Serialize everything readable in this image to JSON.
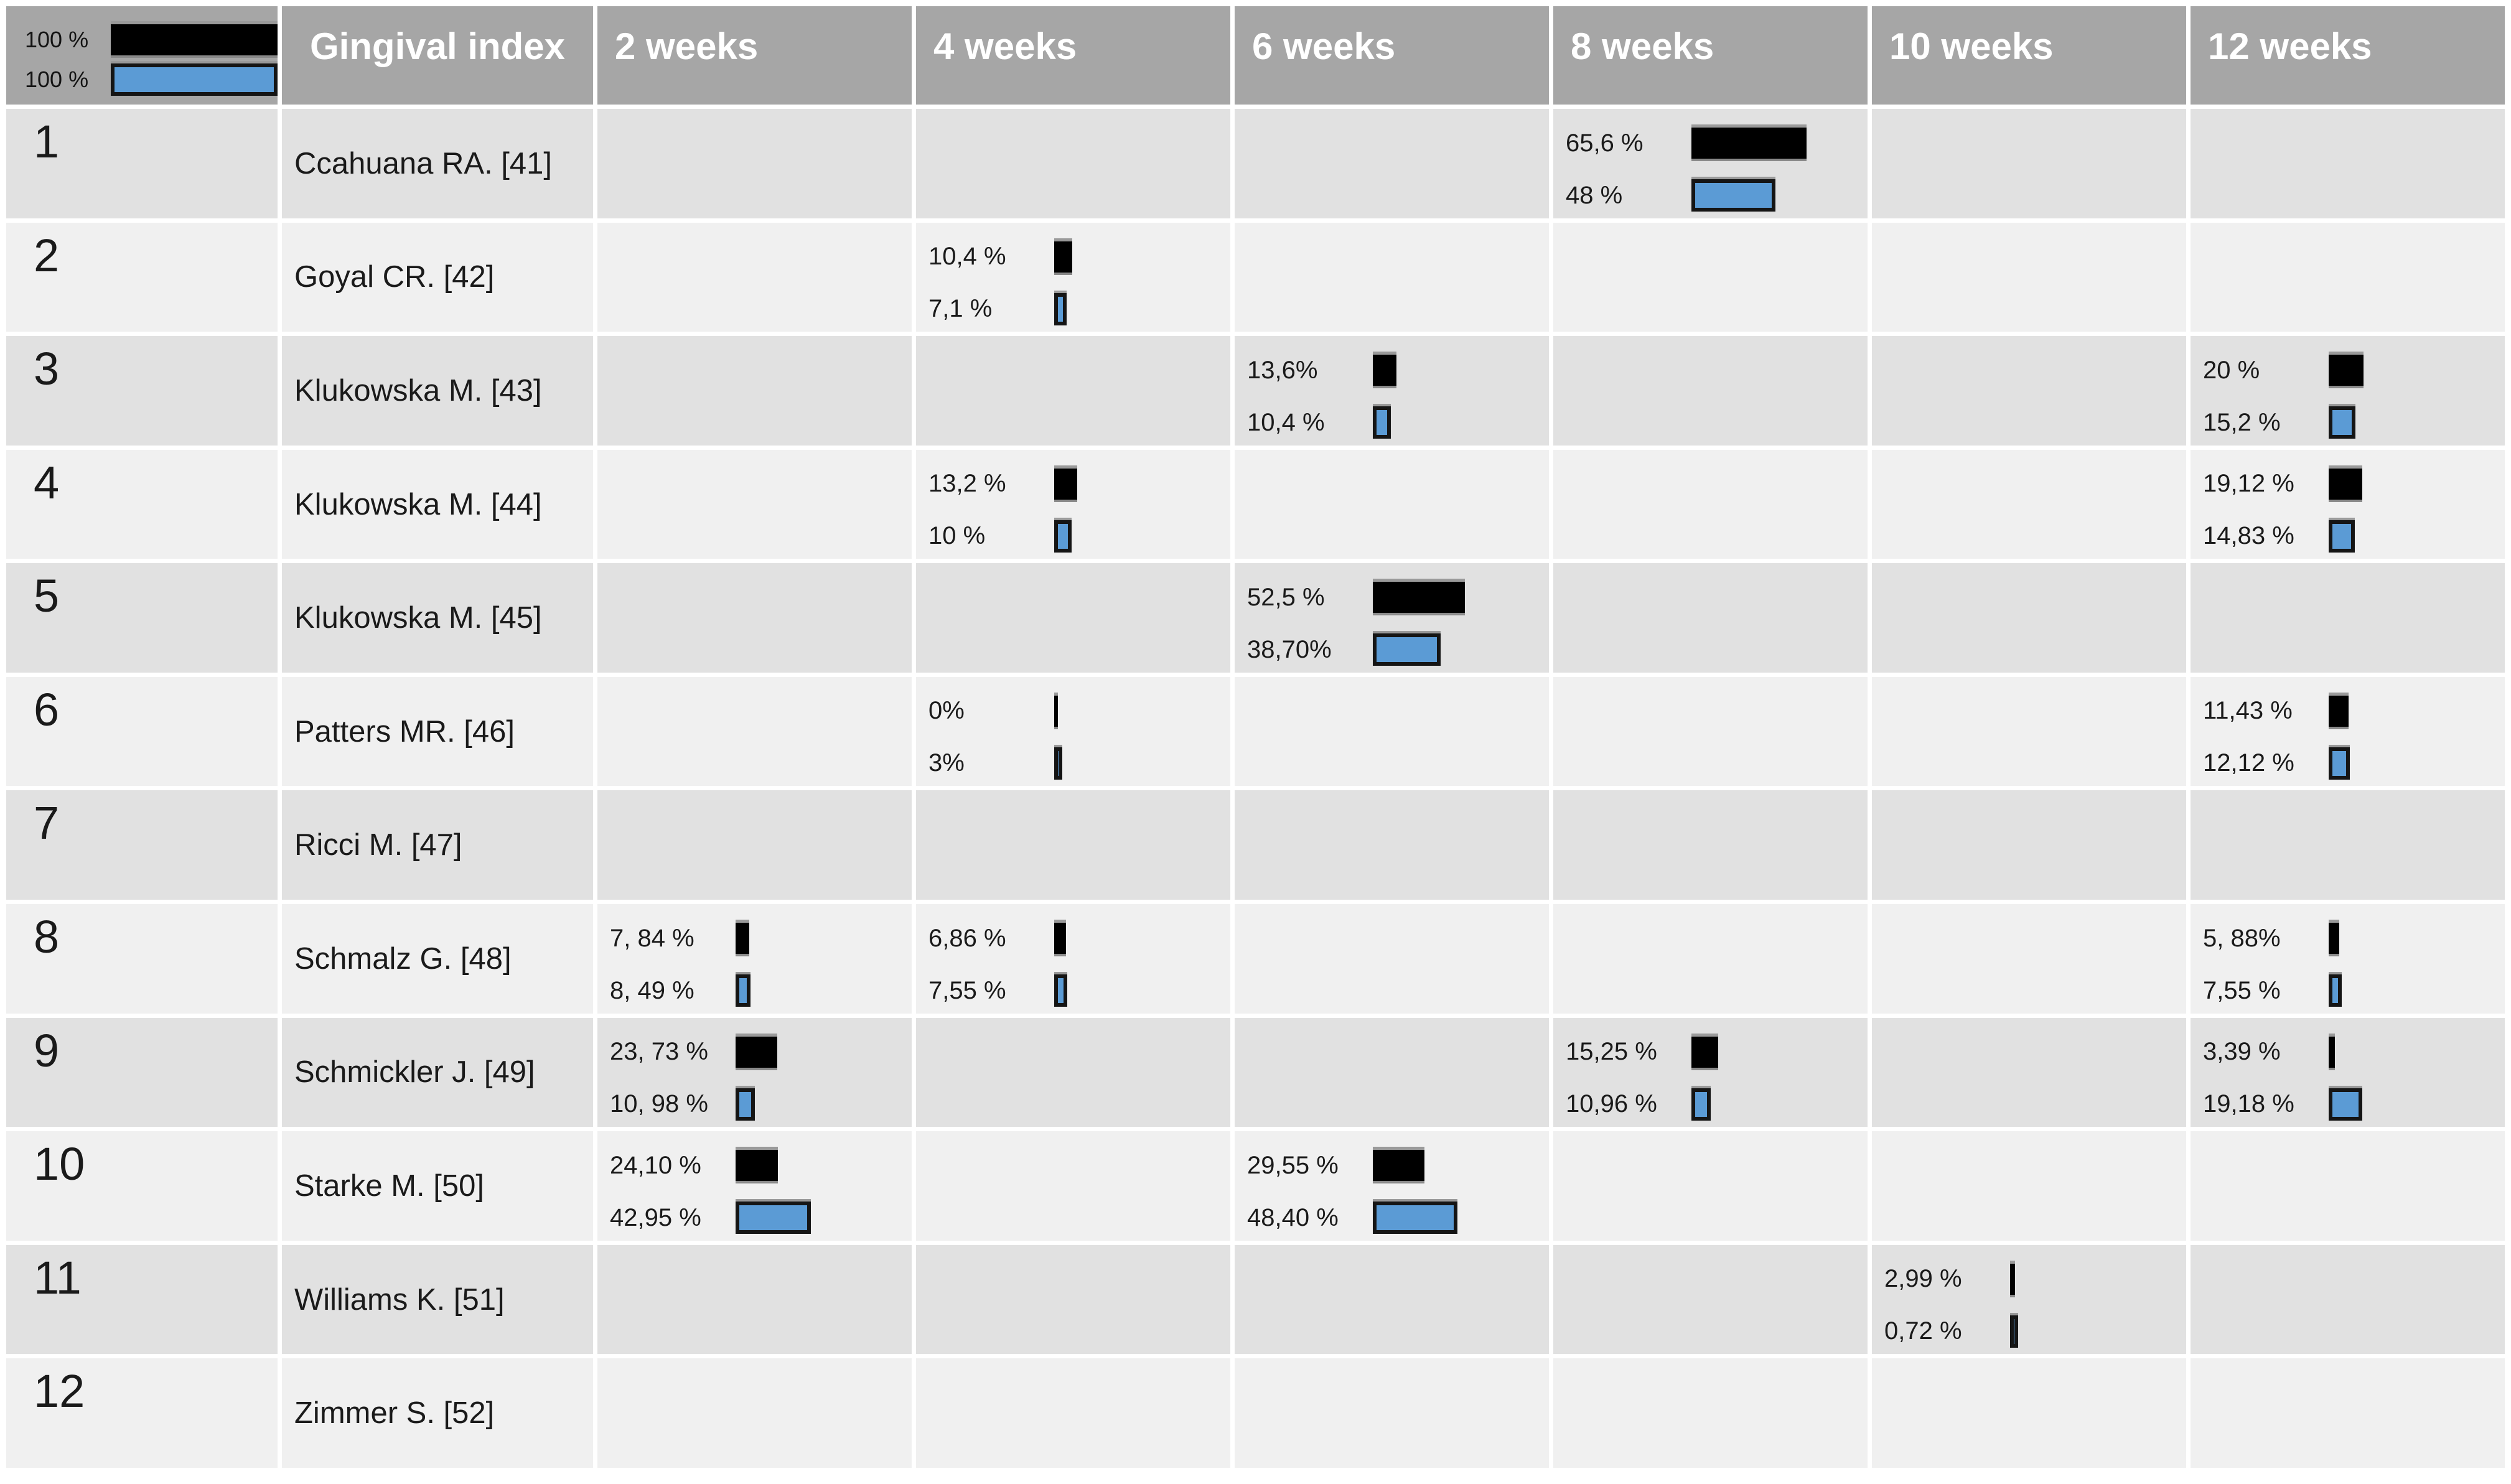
{
  "title": "Gingival index",
  "legend": {
    "black_label": "100 %",
    "blue_label": "100 %",
    "black_value": 100,
    "blue_value": 100
  },
  "header": {
    "index_label": "Gingival index"
  },
  "colors": {
    "header_bg": "#A6A6A6",
    "header_text": "#FFFFFF",
    "row_odd_bg": "#E1E1E1",
    "row_even_bg": "#F0F0F0",
    "black_bar": "#000000",
    "blue_bar": "#5B9BD5",
    "blue_bar_border": "#151515",
    "text": "#1A1A1A",
    "grid_gap": "#FFFFFF"
  },
  "chart_data": {
    "type": "table",
    "title": "Gingival index",
    "columns": [
      "2 weeks",
      "4 weeks",
      "6 weeks",
      "8 weeks",
      "10 weeks",
      "12 weeks"
    ],
    "series": [
      "black",
      "blue"
    ],
    "scale": {
      "full_bar_pct": 100
    },
    "rows": [
      {
        "num": "1",
        "study": "Ccahuana RA. [41]",
        "cells": [
          {
            "col": 3,
            "black_label": "65,6 %",
            "black": 65.6,
            "blue_label": "48 %",
            "blue": 48
          }
        ]
      },
      {
        "num": "2",
        "study": "Goyal CR. [42]",
        "cells": [
          {
            "col": 1,
            "black_label": "10,4 %",
            "black": 10.4,
            "blue_label": "7,1 %",
            "blue": 7.1
          }
        ]
      },
      {
        "num": "3",
        "study": "Klukowska M. [43]",
        "cells": [
          {
            "col": 2,
            "black_label": "13,6%",
            "black": 13.6,
            "blue_label": "10,4 %",
            "blue": 10.4
          },
          {
            "col": 5,
            "black_label": "20 %",
            "black": 20,
            "blue_label": "15,2 %",
            "blue": 15.2
          }
        ]
      },
      {
        "num": "4",
        "study": "Klukowska M. [44]",
        "cells": [
          {
            "col": 1,
            "black_label": "13,2 %",
            "black": 13.2,
            "blue_label": "10 %",
            "blue": 10
          },
          {
            "col": 5,
            "black_label": "19,12 %",
            "black": 19.12,
            "blue_label": "14,83 %",
            "blue": 14.83
          }
        ]
      },
      {
        "num": "5",
        "study": "Klukowska M. [45]",
        "cells": [
          {
            "col": 2,
            "black_label": "52,5 %",
            "black": 52.5,
            "blue_label": "38,70%",
            "blue": 38.7
          }
        ]
      },
      {
        "num": "6",
        "study": "Patters MR. [46]",
        "cells": [
          {
            "col": 1,
            "black_label": "0%",
            "black": 0,
            "blue_label": "3%",
            "blue": 3
          },
          {
            "col": 5,
            "black_label": "11,43 %",
            "black": 11.43,
            "blue_label": "12,12 %",
            "blue": 12.12
          }
        ]
      },
      {
        "num": "7",
        "study": "Ricci M. [47]",
        "cells": []
      },
      {
        "num": "8",
        "study": "Schmalz G. [48]",
        "cells": [
          {
            "col": 0,
            "black_label": "7, 84 %",
            "black": 7.84,
            "blue_label": "8, 49 %",
            "blue": 8.49
          },
          {
            "col": 1,
            "black_label": "6,86 %",
            "black": 6.86,
            "blue_label": "7,55 %",
            "blue": 7.55
          },
          {
            "col": 5,
            "black_label": "5, 88%",
            "black": 5.88,
            "blue_label": "7,55 %",
            "blue": 7.55
          }
        ]
      },
      {
        "num": "9",
        "study": "Schmickler J. [49]",
        "cells": [
          {
            "col": 0,
            "black_label": "23, 73 %",
            "black": 23.73,
            "blue_label": "10, 98 %",
            "blue": 10.98
          },
          {
            "col": 3,
            "black_label": "15,25 %",
            "black": 15.25,
            "blue_label": "10,96 %",
            "blue": 10.96
          },
          {
            "col": 5,
            "black_label": "3,39 %",
            "black": 3.39,
            "blue_label": "19,18 %",
            "blue": 19.18
          }
        ]
      },
      {
        "num": "10",
        "study": "Starke M. [50]",
        "cells": [
          {
            "col": 0,
            "black_label": "24,10 %",
            "black": 24.1,
            "blue_label": "42,95 %",
            "blue": 42.95
          },
          {
            "col": 2,
            "black_label": "29,55 %",
            "black": 29.55,
            "blue_label": "48,40 %",
            "blue": 48.4
          }
        ]
      },
      {
        "num": "11",
        "study": "Williams K. [51]",
        "cells": [
          {
            "col": 4,
            "black_label": "2,99 %",
            "black": 2.99,
            "blue_label": "0,72 %",
            "blue": 0.72
          }
        ]
      },
      {
        "num": "12",
        "study": "Zimmer S. [52]",
        "cells": []
      }
    ]
  }
}
